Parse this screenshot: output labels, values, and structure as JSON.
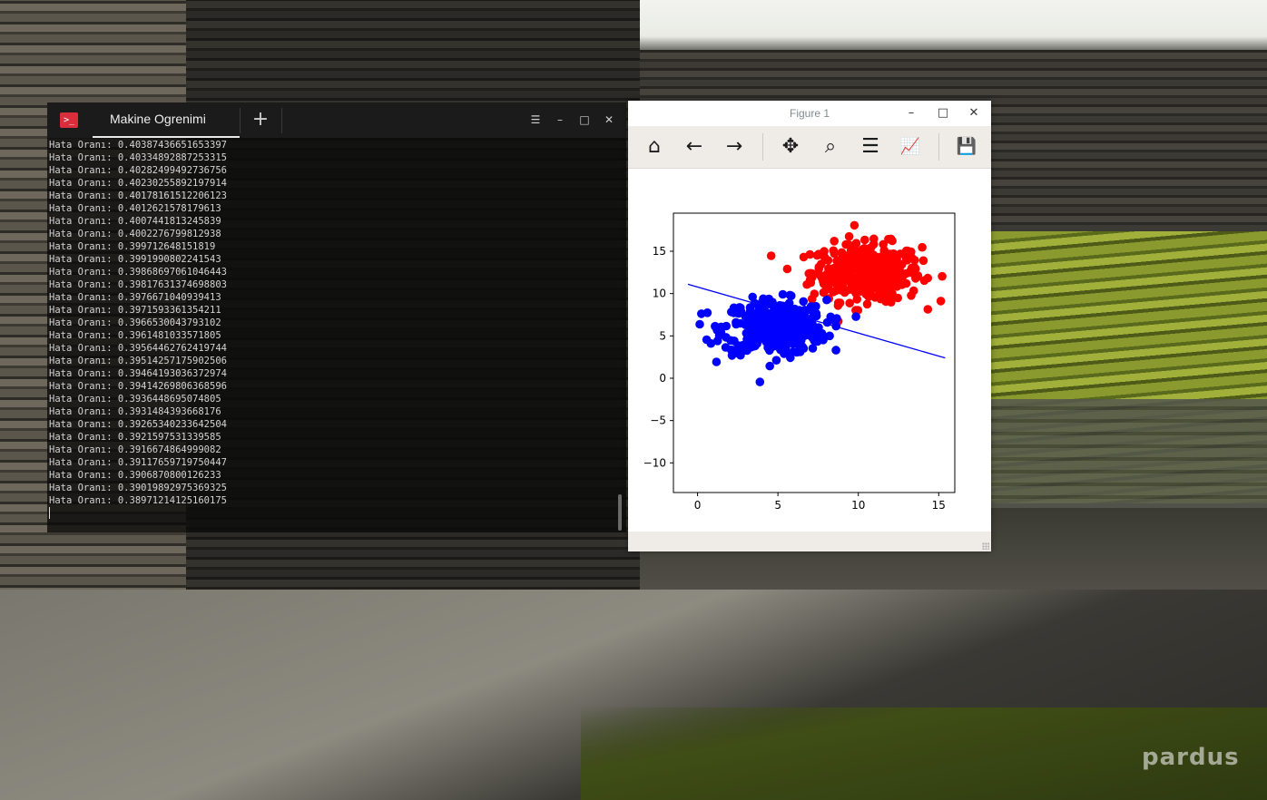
{
  "terminal": {
    "tab_title": "Makine Ogrenimi",
    "new_tab_glyph": "+",
    "controls": {
      "menu": "☰",
      "minimize": "–",
      "maximize": "□",
      "close": "✕"
    },
    "lines": [
      "Hata Oranı: 0.40387436651653397",
      "Hata Oranı: 0.40334892887253315",
      "Hata Oranı: 0.40282499492736756",
      "Hata Oranı: 0.40230255892197914",
      "Hata Oranı: 0.40178161512206123",
      "Hata Oranı: 0.4012621578179613",
      "Hata Oranı: 0.4007441813245839",
      "Hata Oranı: 0.4002276799812938",
      "Hata Oranı: 0.399712648151819",
      "Hata Oranı: 0.3991990802241543",
      "Hata Oranı: 0.39868697061046443",
      "Hata Oranı: 0.39817631374698803",
      "Hata Oranı: 0.3976671040939413",
      "Hata Oranı: 0.3971593361354211",
      "Hata Oranı: 0.3966530043793102",
      "Hata Oranı: 0.3961481033571805",
      "Hata Oranı: 0.39564462762419744",
      "Hata Oranı: 0.39514257175902506",
      "Hata Oranı: 0.39464193036372974",
      "Hata Oranı: 0.39414269806368596",
      "Hata Oranı: 0.3936448695074805",
      "Hata Oranı: 0.3931484393668176",
      "Hata Oranı: 0.39265340233642504",
      "Hata Oranı: 0.3921597531339585",
      "Hata Oranı: 0.3916674864999082",
      "Hata Oranı: 0.39117659719750447",
      "Hata Oranı: 0.3906870800126233",
      "Hata Oranı: 0.39019892975369325",
      "Hata Oranı: 0.38971214125160175"
    ]
  },
  "figure": {
    "title": "Figure 1",
    "controls": {
      "minimize": "–",
      "maximize": "□",
      "close": "✕"
    },
    "toolbar": [
      {
        "name": "home-icon",
        "glyph": "⌂"
      },
      {
        "name": "back-arrow-icon",
        "glyph": "←"
      },
      {
        "name": "forward-arrow-icon",
        "glyph": "→"
      },
      {
        "name": "pan-icon",
        "glyph": "✥"
      },
      {
        "name": "zoom-icon",
        "glyph": "⌕"
      },
      {
        "name": "subplots-icon",
        "glyph": "☰"
      },
      {
        "name": "edit-axis-icon",
        "glyph": "📈"
      },
      {
        "name": "save-icon",
        "glyph": "💾"
      }
    ]
  },
  "desktop": {
    "logo": "pardus"
  },
  "chart_data": {
    "type": "scatter",
    "xlim": [
      -1.5,
      16
    ],
    "ylim": [
      -13.5,
      19.5
    ],
    "xticks": [
      0,
      5,
      10,
      15
    ],
    "yticks": [
      -10,
      -5,
      0,
      5,
      10,
      15
    ],
    "grid": false,
    "series": [
      {
        "color": "#ff0000",
        "center": [
          10.5,
          12.5
        ],
        "spread": [
          1.7,
          1.7
        ],
        "count": 380
      },
      {
        "color": "#0000ff",
        "center": [
          4.8,
          6.0
        ],
        "spread": [
          1.6,
          1.6
        ],
        "count": 380
      }
    ],
    "line": {
      "color": "#0000ff",
      "x": [
        -0.6,
        15.4
      ],
      "y": [
        11.1,
        2.4
      ]
    }
  }
}
